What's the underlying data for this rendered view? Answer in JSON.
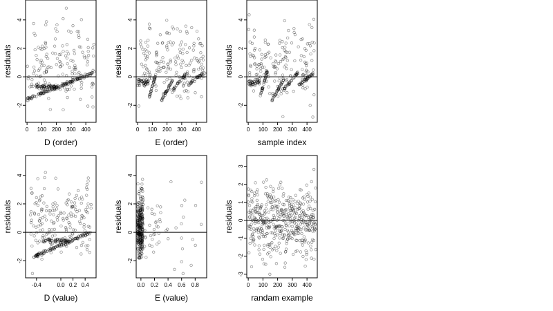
{
  "figure": {
    "background": "#ffffff",
    "point_color": "#000000",
    "point_shape": "open-circle",
    "layout": "2x3 grid of residual scatter plots"
  },
  "chart_data": [
    {
      "type": "scatter",
      "xlabel": "D (order)",
      "ylabel": "residuals",
      "xlim": [
        -10,
        470
      ],
      "ylim": [
        -3.2,
        5.4
      ],
      "xticks": [
        "0",
        "100",
        "200",
        "300",
        "400"
      ],
      "yticks": [
        "-2",
        "0",
        "2",
        "4"
      ],
      "refline_y": 0,
      "pattern": "noise_plus_bands_rising",
      "points": []
    },
    {
      "type": "scatter",
      "xlabel": "E (order)",
      "ylabel": "residuals",
      "xlim": [
        -10,
        470
      ],
      "ylim": [
        -3.2,
        5.4
      ],
      "xticks": [
        "0",
        "100",
        "200",
        "300",
        "400"
      ],
      "yticks": [
        "-2",
        "0",
        "2",
        "4"
      ],
      "refline_y": 0,
      "pattern": "noise_plus_sawtooth",
      "points": []
    },
    {
      "type": "scatter",
      "xlabel": "sample index",
      "ylabel": "residuals",
      "xlim": [
        -10,
        470
      ],
      "ylim": [
        -3.2,
        5.4
      ],
      "xticks": [
        "0",
        "100",
        "200",
        "300",
        "400"
      ],
      "yticks": [
        "-2",
        "0",
        "2",
        "4"
      ],
      "refline_y": 0,
      "pattern": "noise_plus_sawtooth",
      "points": []
    },
    {
      "type": "scatter",
      "xlabel": "D (value)",
      "ylabel": "residuals",
      "xlim": [
        -0.58,
        0.58
      ],
      "ylim": [
        -3.2,
        5.4
      ],
      "xticks": [
        "-0.4",
        "0.0",
        "0.2",
        "0.4"
      ],
      "yticks": [
        "-2",
        "0",
        "2",
        "4"
      ],
      "refline_y": 0,
      "pattern": "noise_plus_bands_value",
      "points": []
    },
    {
      "type": "scatter",
      "xlabel": "E (value)",
      "ylabel": "residuals",
      "xlim": [
        -0.07,
        0.97
      ],
      "ylim": [
        -3.2,
        5.4
      ],
      "xticks": [
        "0.0",
        "0.2",
        "0.4",
        "0.6",
        "0.8"
      ],
      "yticks": [
        "-2",
        "0",
        "2",
        "4"
      ],
      "refline_y": 0,
      "pattern": "clustered_near_zero",
      "points": []
    },
    {
      "type": "scatter",
      "xlabel": "randam example",
      "ylabel": "residuals",
      "xlim": [
        -10,
        470
      ],
      "ylim": [
        -3.2,
        3.6
      ],
      "xticks": [
        "0",
        "100",
        "200",
        "300",
        "400"
      ],
      "yticks": [
        "-3",
        "-2",
        "-1",
        "0",
        "1",
        "2",
        "3"
      ],
      "refline_y": 0,
      "pattern": "random_normal",
      "points": []
    }
  ]
}
